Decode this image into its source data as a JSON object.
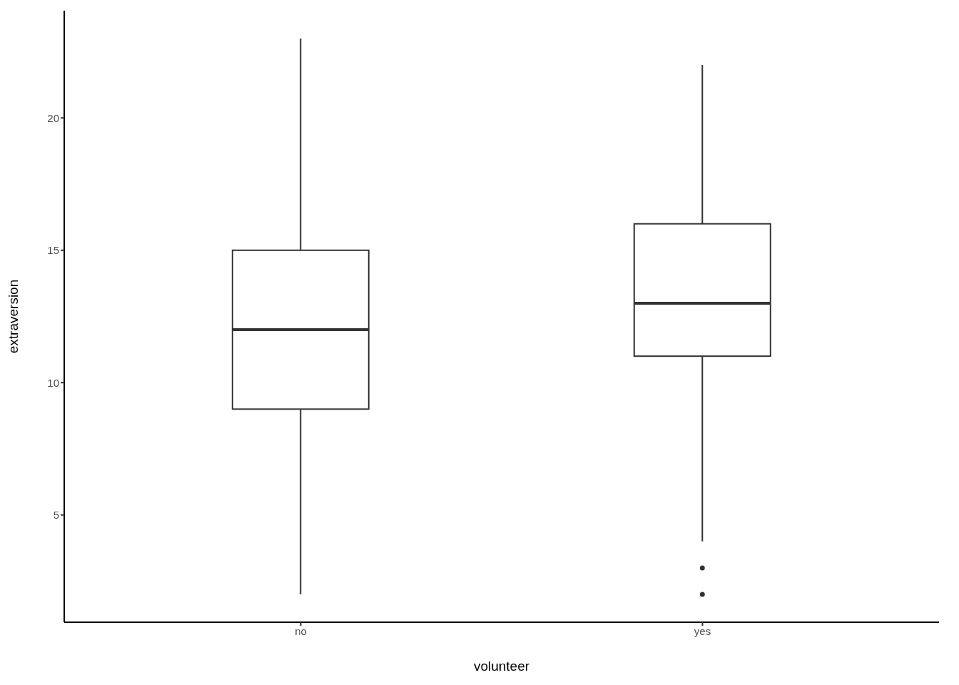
{
  "chart_data": {
    "type": "box",
    "xlabel": "volunteer",
    "ylabel": "extraversion",
    "categories": [
      "no",
      "yes"
    ],
    "boxes": [
      {
        "low": 2,
        "q1": 9,
        "median": 12,
        "q3": 15,
        "high": 23
      },
      {
        "low": 4,
        "q1": 11,
        "median": 13,
        "q3": 16,
        "high": 22,
        "outliers": [
          3,
          2
        ]
      }
    ],
    "color": "#333333",
    "ylim": [
      0.95,
      24.05
    ],
    "yticks": [
      5,
      10,
      15,
      20
    ]
  }
}
